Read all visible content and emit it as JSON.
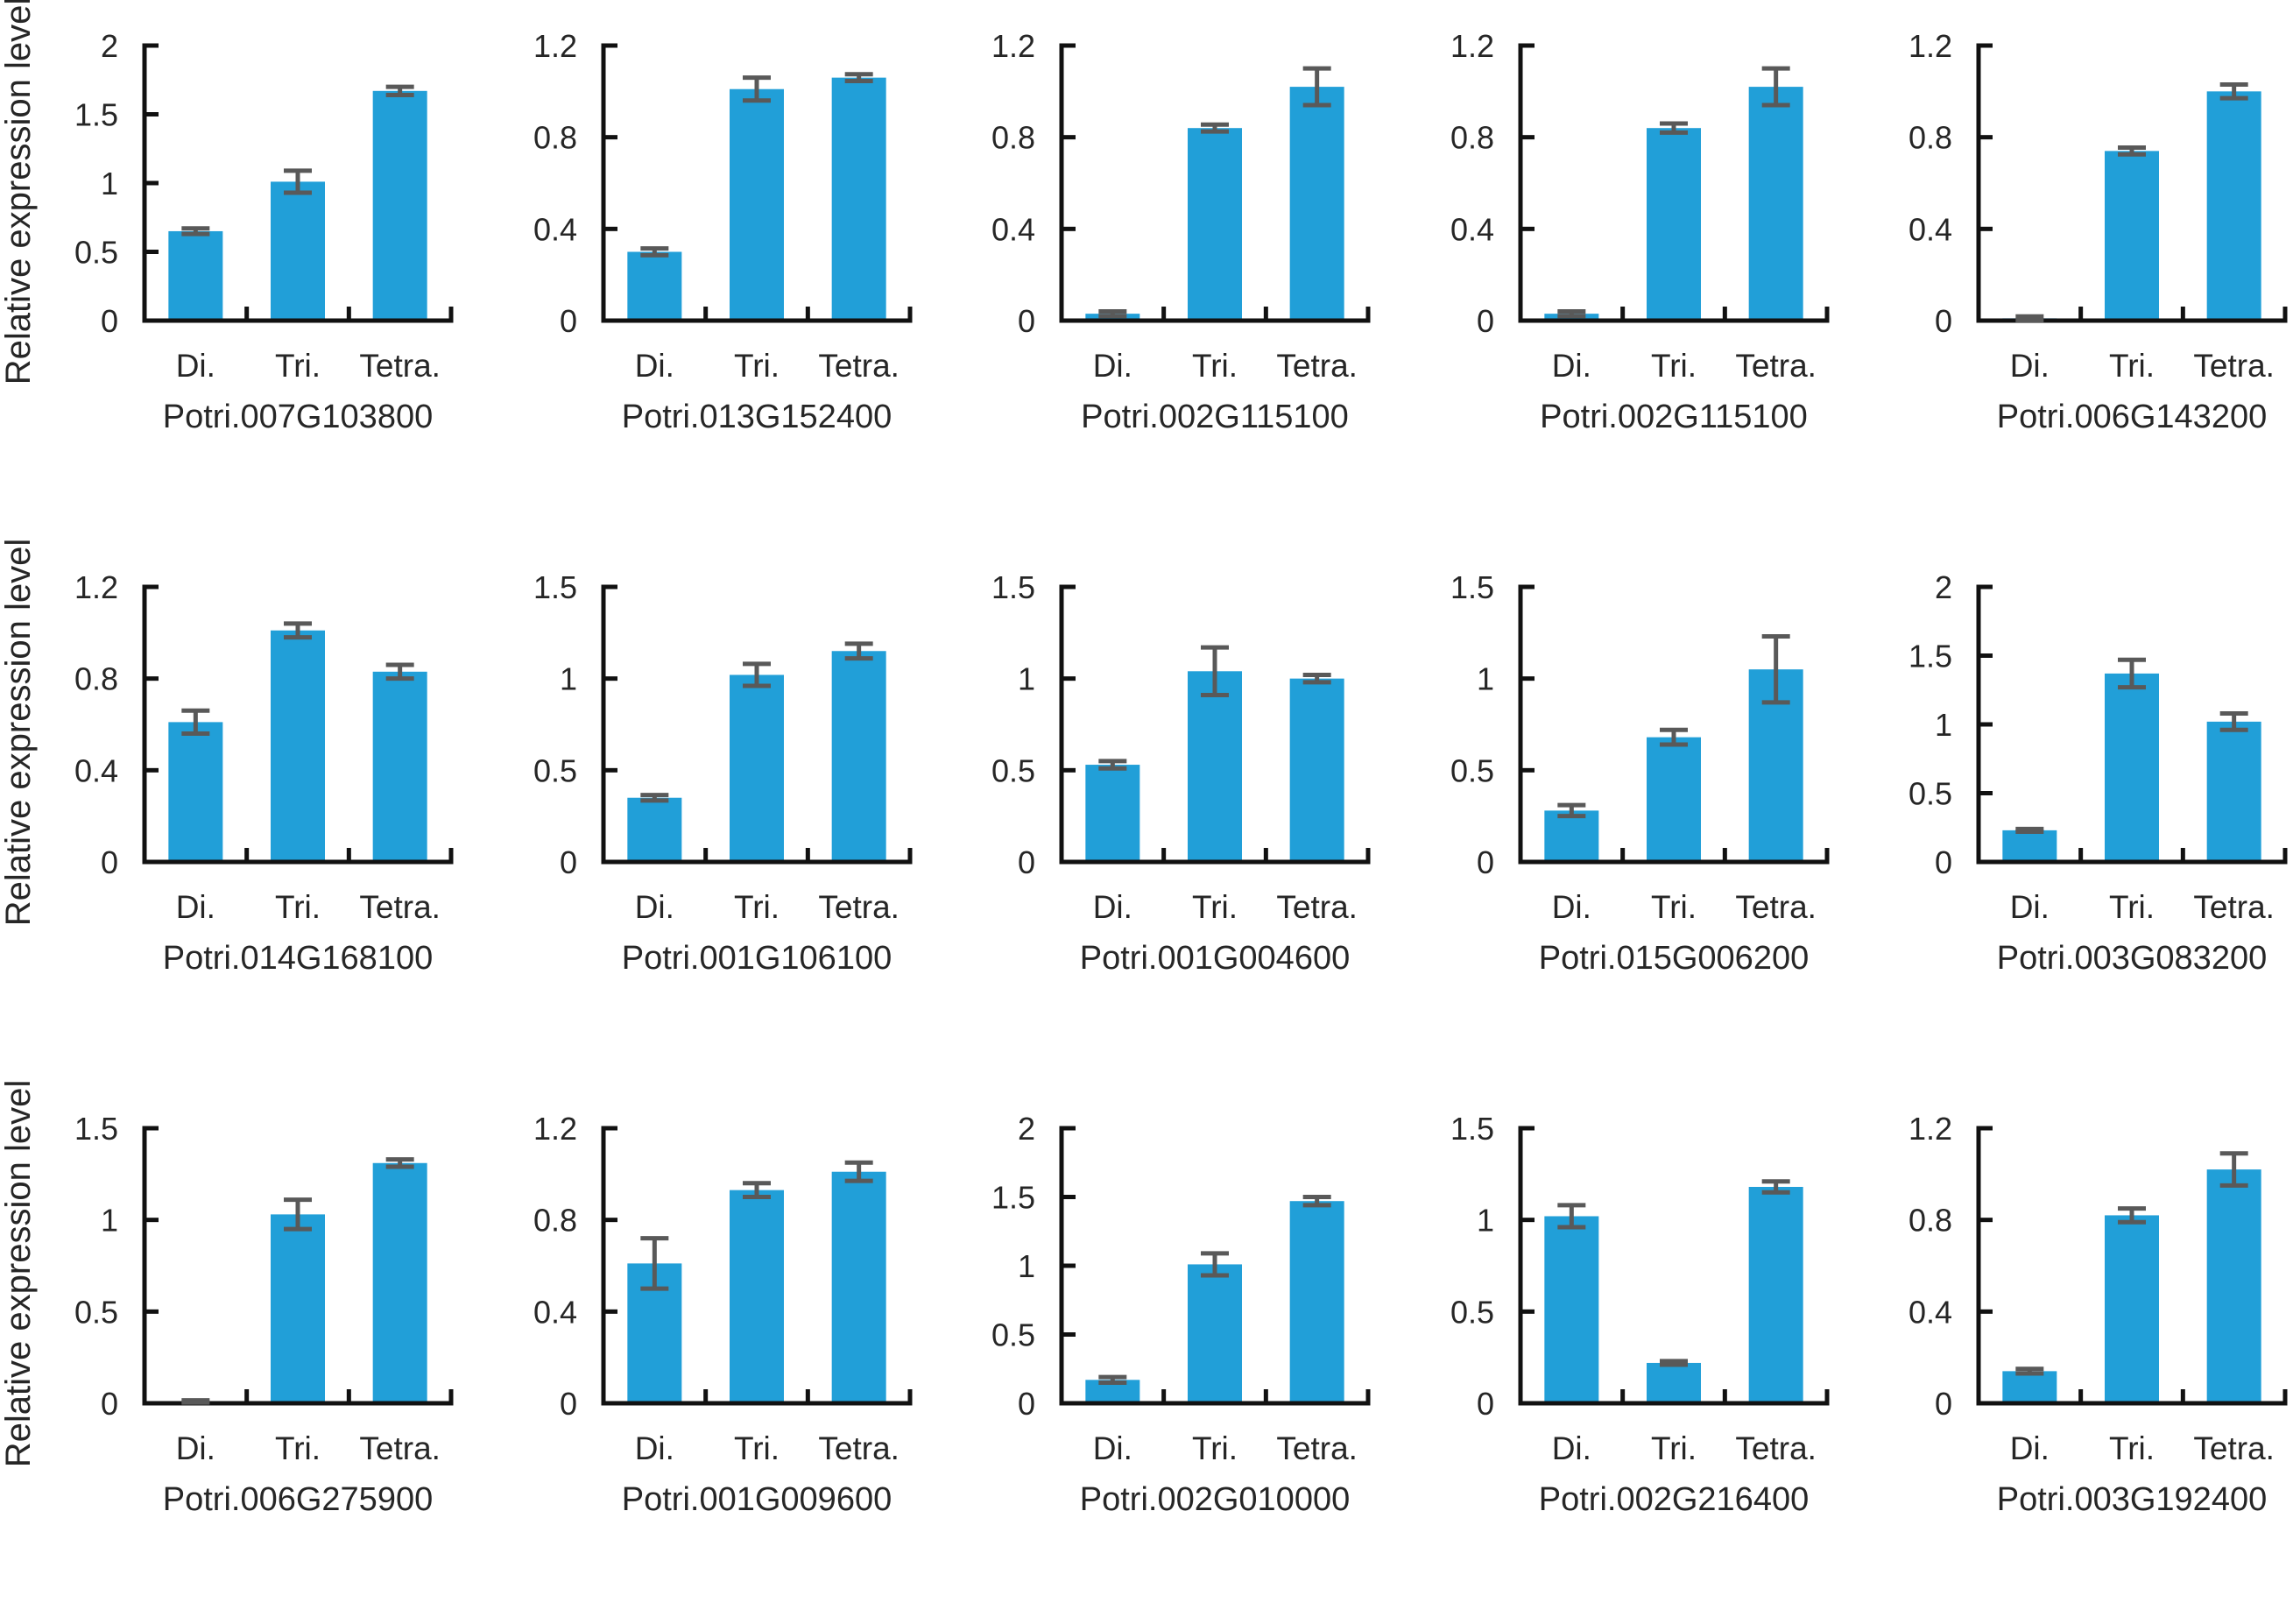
{
  "figure": {
    "ylabel": "Relative expression level",
    "categories": [
      "Di.",
      "Tri.",
      "Tetra."
    ],
    "bar_color": "#219fd8",
    "error_color": "#595959",
    "axis_color": "#111111",
    "text_color": "#262626"
  },
  "chart_data": [
    {
      "type": "bar",
      "gene": "Potri.007G103800",
      "categories": [
        "Di.",
        "Tri.",
        "Tetra."
      ],
      "values": [
        0.65,
        1.01,
        1.67
      ],
      "errors": [
        0.02,
        0.08,
        0.03
      ],
      "ylim": [
        0,
        2
      ],
      "yticks": [
        0,
        0.5,
        1,
        1.5,
        2
      ]
    },
    {
      "type": "bar",
      "gene": "Potri.013G152400",
      "categories": [
        "Di.",
        "Tri.",
        "Tetra."
      ],
      "values": [
        0.3,
        1.01,
        1.06
      ],
      "errors": [
        0.015,
        0.05,
        0.015
      ],
      "ylim": [
        0,
        1.2
      ],
      "yticks": [
        0,
        0.4,
        0.8,
        1.2
      ]
    },
    {
      "type": "bar",
      "gene": "Potri.002G115100",
      "categories": [
        "Di.",
        "Tri.",
        "Tetra."
      ],
      "values": [
        0.03,
        0.84,
        1.02
      ],
      "errors": [
        0.01,
        0.015,
        0.08
      ],
      "ylim": [
        0,
        1.2
      ],
      "yticks": [
        0,
        0.4,
        0.8,
        1.2
      ]
    },
    {
      "type": "bar",
      "gene": "Potri.002G115100",
      "categories": [
        "Di.",
        "Tri.",
        "Tetra."
      ],
      "values": [
        0.03,
        0.84,
        1.02
      ],
      "errors": [
        0.01,
        0.02,
        0.08
      ],
      "ylim": [
        0,
        1.2
      ],
      "yticks": [
        0,
        0.4,
        0.8,
        1.2
      ]
    },
    {
      "type": "bar",
      "gene": "Potri.006G143200",
      "categories": [
        "Di.",
        "Tri.",
        "Tetra."
      ],
      "values": [
        0.01,
        0.74,
        1.0
      ],
      "errors": [
        0.008,
        0.015,
        0.03
      ],
      "ylim": [
        0,
        1.2
      ],
      "yticks": [
        0,
        0.4,
        0.8,
        1.2
      ]
    },
    {
      "type": "bar",
      "gene": "Potri.014G168100",
      "categories": [
        "Di.",
        "Tri.",
        "Tetra."
      ],
      "values": [
        0.61,
        1.01,
        0.83
      ],
      "errors": [
        0.05,
        0.03,
        0.03
      ],
      "ylim": [
        0,
        1.2
      ],
      "yticks": [
        0,
        0.4,
        0.8,
        1.2
      ]
    },
    {
      "type": "bar",
      "gene": "Potri.001G106100",
      "categories": [
        "Di.",
        "Tri.",
        "Tetra."
      ],
      "values": [
        0.35,
        1.02,
        1.15
      ],
      "errors": [
        0.015,
        0.06,
        0.04
      ],
      "ylim": [
        0,
        1.5
      ],
      "yticks": [
        0,
        0.5,
        1,
        1.5
      ]
    },
    {
      "type": "bar",
      "gene": "Potri.001G004600",
      "categories": [
        "Di.",
        "Tri.",
        "Tetra."
      ],
      "values": [
        0.53,
        1.04,
        1.0
      ],
      "errors": [
        0.02,
        0.13,
        0.02
      ],
      "ylim": [
        0,
        1.5
      ],
      "yticks": [
        0,
        0.5,
        1,
        1.5
      ]
    },
    {
      "type": "bar",
      "gene": "Potri.015G006200",
      "categories": [
        "Di.",
        "Tri.",
        "Tetra."
      ],
      "values": [
        0.28,
        0.68,
        1.05
      ],
      "errors": [
        0.03,
        0.04,
        0.18
      ],
      "ylim": [
        0,
        1.5
      ],
      "yticks": [
        0,
        0.5,
        1,
        1.5
      ]
    },
    {
      "type": "bar",
      "gene": "Potri.003G083200",
      "categories": [
        "Di.",
        "Tri.",
        "Tetra."
      ],
      "values": [
        0.23,
        1.37,
        1.02
      ],
      "errors": [
        0.01,
        0.1,
        0.06
      ],
      "ylim": [
        0,
        2
      ],
      "yticks": [
        0,
        0.5,
        1,
        1.5,
        2
      ]
    },
    {
      "type": "bar",
      "gene": "Potri.006G275900",
      "categories": [
        "Di.",
        "Tri.",
        "Tetra."
      ],
      "values": [
        0.01,
        1.03,
        1.31
      ],
      "errors": [
        0.006,
        0.08,
        0.02
      ],
      "ylim": [
        0,
        1.5
      ],
      "yticks": [
        0,
        0.5,
        1,
        1.5
      ]
    },
    {
      "type": "bar",
      "gene": "Potri.001G009600",
      "categories": [
        "Di.",
        "Tri.",
        "Tetra."
      ],
      "values": [
        0.61,
        0.93,
        1.01
      ],
      "errors": [
        0.11,
        0.03,
        0.04
      ],
      "ylim": [
        0,
        1.2
      ],
      "yticks": [
        0,
        0.4,
        0.8,
        1.2
      ]
    },
    {
      "type": "bar",
      "gene": "Potri.002G010000",
      "categories": [
        "Di.",
        "Tri.",
        "Tetra."
      ],
      "values": [
        0.17,
        1.01,
        1.47
      ],
      "errors": [
        0.02,
        0.08,
        0.03
      ],
      "ylim": [
        0,
        2
      ],
      "yticks": [
        0,
        0.5,
        1,
        1.5,
        2
      ]
    },
    {
      "type": "bar",
      "gene": "Potri.002G216400",
      "categories": [
        "Di.",
        "Tri.",
        "Tetra."
      ],
      "values": [
        1.02,
        0.22,
        1.18
      ],
      "errors": [
        0.06,
        0.01,
        0.03
      ],
      "ylim": [
        0,
        1.5
      ],
      "yticks": [
        0,
        0.5,
        1,
        1.5
      ]
    },
    {
      "type": "bar",
      "gene": "Potri.003G192400",
      "categories": [
        "Di.",
        "Tri.",
        "Tetra."
      ],
      "values": [
        0.14,
        0.82,
        1.02
      ],
      "errors": [
        0.01,
        0.03,
        0.07
      ],
      "ylim": [
        0,
        1.2
      ],
      "yticks": [
        0,
        0.4,
        0.8,
        1.2
      ]
    }
  ]
}
